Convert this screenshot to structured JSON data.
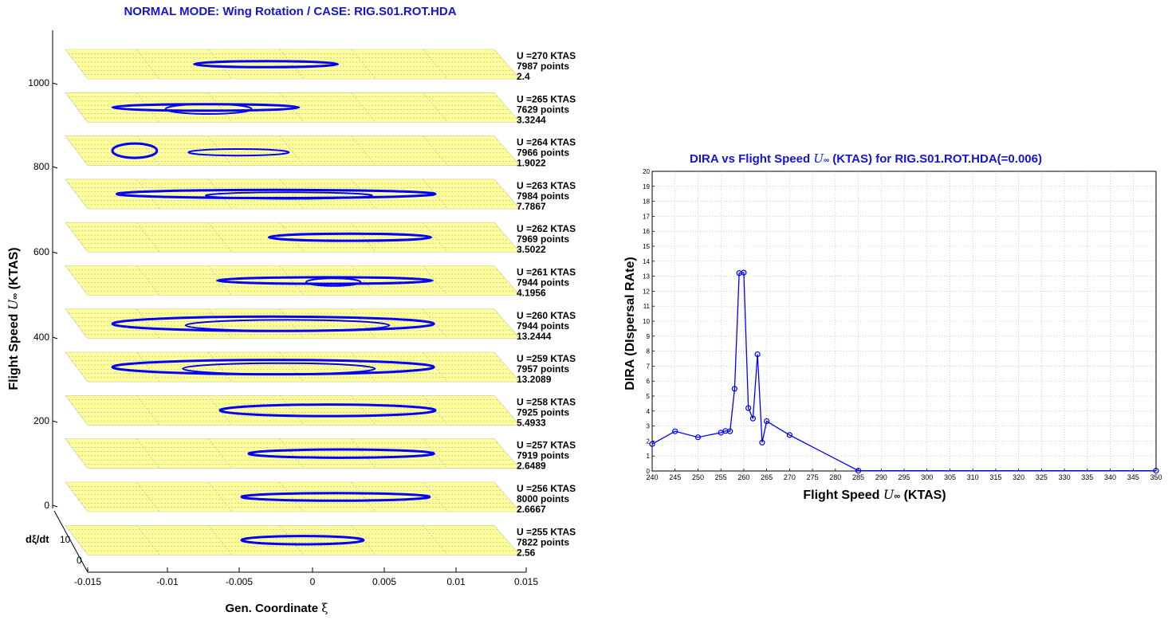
{
  "colors": {
    "title": "#1414d2",
    "series": "#0000ff",
    "panel": "#ffff99",
    "points_text": "#cc1111",
    "label_blue": "#1a1aa8"
  },
  "left": {
    "title": "NORMAL MODE: Wing Rotation / CASE: RIG.S01.ROT.HDA",
    "ylabel_pre": "Flight Speed ",
    "ylabel_sym": "U",
    "ylabel_sub": "∞",
    "ylabel_post": " (KTAS)",
    "xlabel_pre": "Gen. Coordinate ",
    "xlabel_sym": "ξ",
    "zlabel": "dξ/dt",
    "zticks": [
      "10",
      "0"
    ],
    "vticks": [
      "1000",
      "800",
      "600",
      "400",
      "200",
      "0"
    ],
    "xticks": [
      "-0.015",
      "-0.01",
      "-0.005",
      "0",
      "0.005",
      "0.01",
      "0.015"
    ]
  },
  "chart_data": [
    {
      "type": "scatter",
      "title": "NORMAL MODE: Wing Rotation / CASE: RIG.S01.ROT.HDA",
      "xlabel": "Gen. Coordinate ξ",
      "ylabel": "Flight Speed U∞ (KTAS)",
      "zlabel": "dξ/dt",
      "xlim": [
        -0.015,
        0.015
      ],
      "x_ticks": [
        -0.015,
        -0.01,
        -0.005,
        0,
        0.005,
        0.01,
        0.015
      ],
      "y_ticks": [
        0,
        200,
        400,
        600,
        800,
        1000
      ],
      "z_ticks": [
        0,
        10
      ],
      "panels": [
        {
          "speed_label": "U =270 KTAS",
          "points_label": "7987 points",
          "dira_label": "2.4"
        },
        {
          "speed_label": "U =265 KTAS",
          "points_label": "7629 points",
          "dira_label": "3.3244"
        },
        {
          "speed_label": "U =264 KTAS",
          "points_label": "7966 points",
          "dira_label": "1.9022"
        },
        {
          "speed_label": "U =263 KTAS",
          "points_label": "7984 points",
          "dira_label": "7.7867"
        },
        {
          "speed_label": "U =262 KTAS",
          "points_label": "7969 points",
          "dira_label": "3.5022"
        },
        {
          "speed_label": "U =261 KTAS",
          "points_label": "7944 points",
          "dira_label": "4.1956"
        },
        {
          "speed_label": "U =260 KTAS",
          "points_label": "7944 points",
          "dira_label": "13.2444"
        },
        {
          "speed_label": "U =259 KTAS",
          "points_label": "7957 points",
          "dira_label": "13.2089"
        },
        {
          "speed_label": "U =258 KTAS",
          "points_label": "7925 points",
          "dira_label": "5.4933"
        },
        {
          "speed_label": "U =257 KTAS",
          "points_label": "7919 points",
          "dira_label": "2.6489"
        },
        {
          "speed_label": "U =256 KTAS",
          "points_label": "8000 points",
          "dira_label": "2.6667"
        },
        {
          "speed_label": "U =255 KTAS",
          "points_label": "7822 points",
          "dira_label": "2.56"
        }
      ],
      "orbits": [
        {
          "speed": 270,
          "ellipses": [
            {
              "x0": -0.0068,
              "x1": 0.0032,
              "w": 0.25
            }
          ]
        },
        {
          "speed": 265,
          "ellipses": [
            {
              "x0": -0.0125,
              "x1": 0.0005,
              "w": 0.3
            },
            {
              "x0": -0.0088,
              "x1": -0.0028,
              "w": 0.6
            }
          ]
        },
        {
          "speed": 264,
          "ellipses": [
            {
              "x0": -0.0125,
              "x1": -0.0094,
              "w": 1.0
            },
            {
              "x0": -0.0072,
              "x1": -0.0002,
              "w": 0.3
            }
          ]
        },
        {
          "speed": 263,
          "ellipses": [
            {
              "x0": -0.0122,
              "x1": 0.01,
              "w": 0.45
            },
            {
              "x0": -0.006,
              "x1": 0.0056,
              "w": 0.3
            }
          ]
        },
        {
          "speed": 262,
          "ellipses": [
            {
              "x0": -0.0016,
              "x1": 0.0097,
              "w": 0.35
            }
          ]
        },
        {
          "speed": 261,
          "ellipses": [
            {
              "x0": -0.0052,
              "x1": 0.0098,
              "w": 0.3
            },
            {
              "x0": 0.001,
              "x1": 0.0048,
              "w": 0.4
            }
          ]
        },
        {
          "speed": 260,
          "ellipses": [
            {
              "x0": -0.0125,
              "x1": 0.0099,
              "w": 1.0
            },
            {
              "x0": -0.0074,
              "x1": 0.0068,
              "w": 0.7
            }
          ]
        },
        {
          "speed": 259,
          "ellipses": [
            {
              "x0": -0.0125,
              "x1": 0.0099,
              "w": 1.0
            },
            {
              "x0": -0.0076,
              "x1": 0.0058,
              "w": 0.7
            }
          ]
        },
        {
          "speed": 258,
          "ellipses": [
            {
              "x0": -0.005,
              "x1": 0.01,
              "w": 0.75
            }
          ]
        },
        {
          "speed": 257,
          "ellipses": [
            {
              "x0": -0.003,
              "x1": 0.0099,
              "w": 0.45
            }
          ]
        },
        {
          "speed": 256,
          "ellipses": [
            {
              "x0": -0.0035,
              "x1": 0.0096,
              "w": 0.4
            }
          ]
        },
        {
          "speed": 255,
          "ellipses": [
            {
              "x0": -0.0035,
              "x1": 0.005,
              "w": 0.45
            }
          ]
        }
      ]
    },
    {
      "type": "line",
      "title": "DIRA vs Flight Speed U∞ (KTAS) for RIG.S01.ROT.HDA(=0.006)",
      "xlabel": "Flight Speed U∞ (KTAS)",
      "ylabel": "DIRA (DIspersal RAte)",
      "xlim": [
        240,
        350
      ],
      "ylim": [
        0,
        20
      ],
      "grid": true,
      "x": [
        240,
        245,
        250,
        255,
        256,
        257,
        258,
        259,
        260,
        261,
        262,
        263,
        264,
        265,
        270,
        285,
        350
      ],
      "y": [
        1.8,
        2.65,
        2.25,
        2.56,
        2.67,
        2.65,
        5.49,
        13.21,
        13.24,
        4.2,
        3.5,
        7.79,
        1.9,
        3.32,
        2.4,
        0.02,
        0.02
      ]
    }
  ],
  "right": {
    "title_pre": "DIRA vs Flight Speed ",
    "title_sym": "U",
    "title_sub": "∞",
    "title_post": " (KTAS) for RIG.S01.ROT.HDA(=0.006)",
    "xlabel_pre": "Flight Speed ",
    "xlabel_sym": "U",
    "xlabel_sub": "∞",
    "xlabel_post": " (KTAS)",
    "ylabel": "DIRA (DIspersal RAte)"
  }
}
